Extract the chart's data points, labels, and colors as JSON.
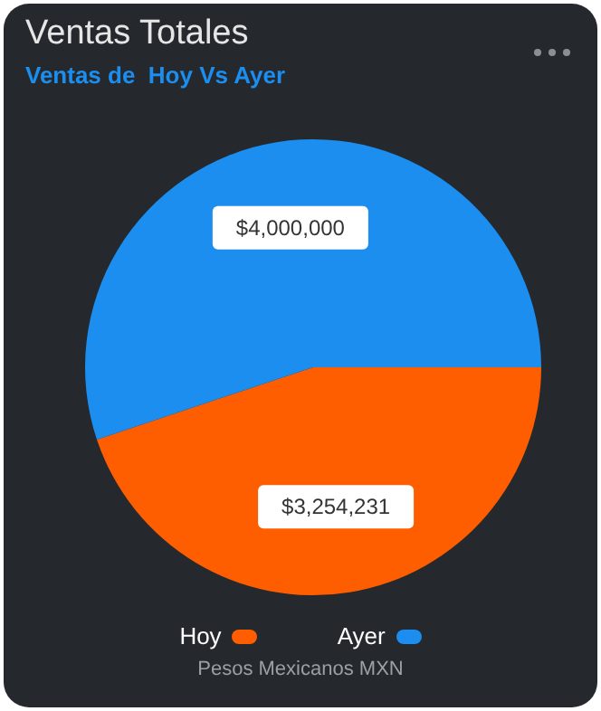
{
  "chart_data": {
    "type": "pie",
    "title": "Ventas Totales",
    "subtitle": "Ventas de  Hoy Vs Ayer",
    "categories": [
      "Hoy",
      "Ayer"
    ],
    "values": [
      3254231,
      4000000
    ],
    "colors": [
      "#ff5e00",
      "#1b8ef0"
    ],
    "value_labels": [
      "$3,254,231",
      "$4,000,000"
    ],
    "legend": "bottom",
    "annotations": [
      "Pesos Mexicanos MXN"
    ]
  }
}
